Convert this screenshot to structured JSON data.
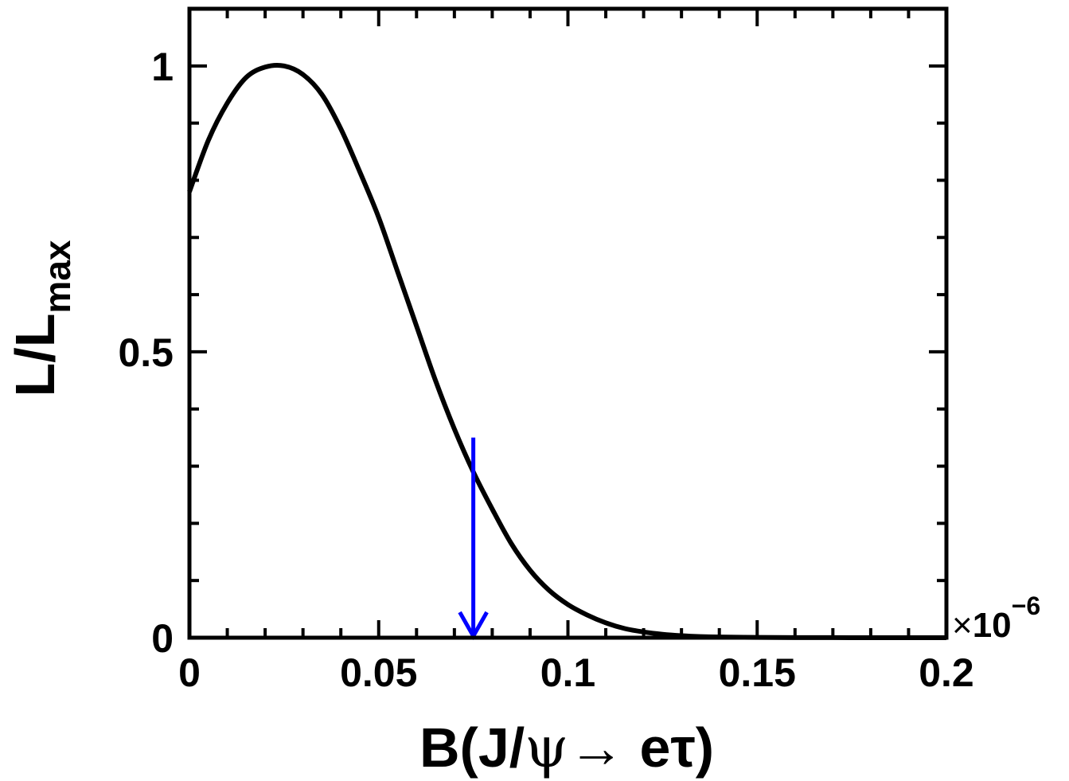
{
  "chart_data": {
    "type": "line",
    "xlabel": {
      "prefix": "B(J/",
      "psi": "ψ",
      "arrow": "→",
      "suffix": " eτ)"
    },
    "ylabel": {
      "main": "L/L",
      "sub": "max"
    },
    "x_multiplier": {
      "times": "×",
      "base": "10",
      "exponent": "−6"
    },
    "xlim": [
      0,
      0.2
    ],
    "ylim": [
      0,
      1.1
    ],
    "x_ticks": [
      0,
      0.05,
      0.1,
      0.15,
      0.2
    ],
    "x_tick_labels": [
      "0",
      "0.05",
      "0.1",
      "0.15",
      "0.2"
    ],
    "y_ticks": [
      0,
      0.5,
      1
    ],
    "y_tick_labels": [
      "0",
      "0.5",
      "1"
    ],
    "series": [
      {
        "color": "#000000",
        "x": [
          0,
          0.005,
          0.01,
          0.015,
          0.02,
          0.025,
          0.03,
          0.035,
          0.04,
          0.045,
          0.05,
          0.055,
          0.06,
          0.065,
          0.07,
          0.075,
          0.08,
          0.085,
          0.09,
          0.095,
          0.1,
          0.105,
          0.11,
          0.115,
          0.12,
          0.125,
          0.13,
          0.135,
          0.14,
          0.15,
          0.16,
          0.17,
          0.18,
          0.19,
          0.2
        ],
        "y": [
          0.78,
          0.87,
          0.935,
          0.98,
          0.998,
          1.0,
          0.985,
          0.95,
          0.89,
          0.815,
          0.735,
          0.64,
          0.545,
          0.45,
          0.365,
          0.29,
          0.225,
          0.165,
          0.118,
          0.083,
          0.058,
          0.04,
          0.026,
          0.016,
          0.01,
          0.006,
          0.0035,
          0.002,
          0.0012,
          0.0005,
          0.0002,
          0.0001,
          0.0,
          0.0,
          0.0
        ]
      }
    ],
    "upper_limit_marker": {
      "x": 0.075,
      "y": 0.35,
      "color": "#0000ff"
    }
  }
}
